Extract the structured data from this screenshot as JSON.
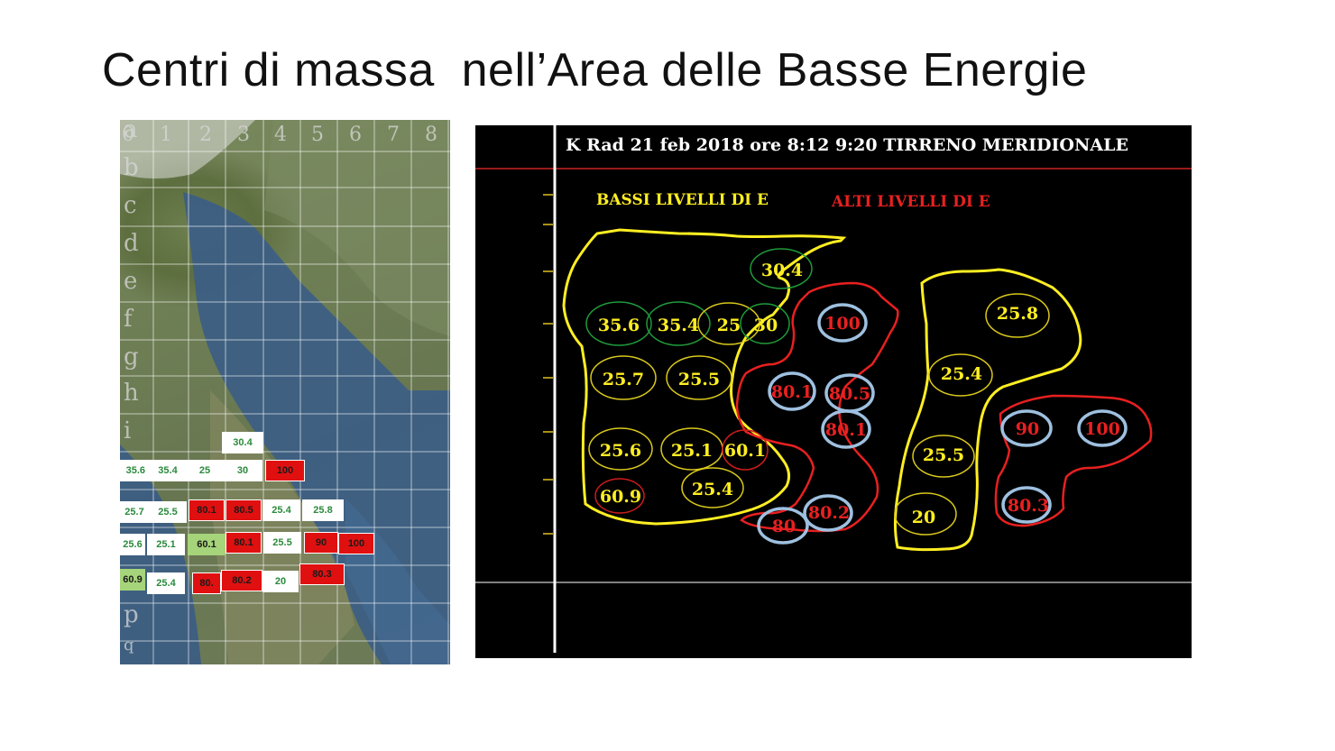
{
  "slide": {
    "title": "Centri di massa  nell’Area delle Basse Energie"
  },
  "map": {
    "col_labels": [
      "0",
      "1",
      "2",
      "3",
      "4",
      "5",
      "6",
      "7",
      "8"
    ],
    "row_labels": [
      "a",
      "b",
      "c",
      "d",
      "e",
      "f",
      "g",
      "h",
      "i",
      "p",
      "q"
    ],
    "cells": [
      {
        "label": "30.4",
        "style": "w"
      },
      {
        "label": "35.6",
        "style": "w"
      },
      {
        "label": "35.4",
        "style": "w"
      },
      {
        "label": "25",
        "style": "w"
      },
      {
        "label": "30",
        "style": "w"
      },
      {
        "label": "100",
        "style": "r"
      },
      {
        "label": "25.7",
        "style": "w"
      },
      {
        "label": "25.5",
        "style": "w"
      },
      {
        "label": "80.1",
        "style": "r"
      },
      {
        "label": "80.5",
        "style": "r"
      },
      {
        "label": "25.4",
        "style": "w"
      },
      {
        "label": "25.8",
        "style": "w"
      },
      {
        "label": "25.6",
        "style": "w"
      },
      {
        "label": "25.1",
        "style": "w"
      },
      {
        "label": "60.1",
        "style": "g"
      },
      {
        "label": "80.1",
        "style": "r"
      },
      {
        "label": "25.5",
        "style": "w"
      },
      {
        "label": "90",
        "style": "r"
      },
      {
        "label": "100",
        "style": "r"
      },
      {
        "label": "60.9",
        "style": "g"
      },
      {
        "label": "25.4",
        "style": "w"
      },
      {
        "label": "80.",
        "style": "r"
      },
      {
        "label": "80.2",
        "style": "r"
      },
      {
        "label": "20",
        "style": "w"
      },
      {
        "label": "80.3",
        "style": "r"
      }
    ]
  },
  "radar": {
    "header": "K Rad 21 feb 2018 ore 8:12  9:20  TIRRENO MERIDIONALE",
    "legend_low": "BASSI LIVELLI DI E",
    "legend_high": "ALTI LIVELLI DI E",
    "colors": {
      "low": "#ffee22",
      "high": "#e82020",
      "ring_green": "#1f9a3a",
      "ring_blue": "#9ec0e0",
      "ring_yellow": "#d9c81c",
      "ring_red": "#d01c1c"
    },
    "markers": [
      {
        "label": "30.4",
        "level": "low",
        "ring": "green"
      },
      {
        "label": "35.6",
        "level": "low",
        "ring": "green"
      },
      {
        "label": "35.4",
        "level": "low",
        "ring": "green"
      },
      {
        "label": "25",
        "level": "low",
        "ring": "yellow"
      },
      {
        "label": "30",
        "level": "low",
        "ring": "green"
      },
      {
        "label": "25.7",
        "level": "low",
        "ring": "yellow"
      },
      {
        "label": "25.5",
        "level": "low",
        "ring": "yellow"
      },
      {
        "label": "25.6",
        "level": "low",
        "ring": "yellow"
      },
      {
        "label": "25.1",
        "level": "low",
        "ring": "yellow"
      },
      {
        "label": "60.1",
        "level": "low",
        "ring": "red"
      },
      {
        "label": "60.9",
        "level": "low",
        "ring": "red"
      },
      {
        "label": "25.4",
        "level": "low",
        "ring": "yellow"
      },
      {
        "label": "100",
        "level": "high",
        "ring": "blue"
      },
      {
        "label": "80.1",
        "level": "high",
        "ring": "blue"
      },
      {
        "label": "80.5",
        "level": "high",
        "ring": "blue"
      },
      {
        "label": "80.1",
        "level": "high",
        "ring": "blue"
      },
      {
        "label": "80",
        "level": "high",
        "ring": "blue"
      },
      {
        "label": "80.2",
        "level": "high",
        "ring": "blue"
      },
      {
        "label": "25.8",
        "level": "low",
        "ring": "yellow"
      },
      {
        "label": "25.4",
        "level": "low",
        "ring": "yellow"
      },
      {
        "label": "25.5",
        "level": "low",
        "ring": "yellow"
      },
      {
        "label": "20",
        "level": "low",
        "ring": "yellow"
      },
      {
        "label": "90",
        "level": "high",
        "ring": "blue"
      },
      {
        "label": "100",
        "level": "high",
        "ring": "blue"
      },
      {
        "label": "80.3",
        "level": "high",
        "ring": "blue"
      }
    ]
  }
}
